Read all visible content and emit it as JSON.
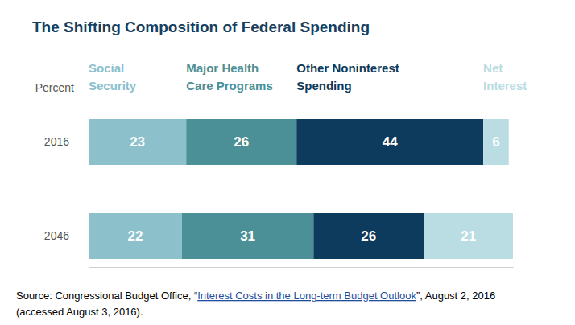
{
  "chart_data": {
    "type": "bar",
    "title": "The Shifting Composition of Federal Spending",
    "annotations": [
      "Percent"
    ],
    "categories": [
      "2016",
      "2046"
    ],
    "series": [
      {
        "name": "Social Security",
        "color": "#8cc0cb",
        "values": [
          23,
          22
        ]
      },
      {
        "name": "Major Health Care Programs",
        "color": "#4b9096",
        "values": [
          26,
          31
        ]
      },
      {
        "name": "Other Noninterest Spending",
        "color": "#0d3b5e",
        "values": [
          44,
          26
        ]
      },
      {
        "name": "Net Interest",
        "color": "#b9dde2",
        "values": [
          6,
          21
        ]
      }
    ],
    "xlim": [
      0,
      100
    ],
    "orientation": "horizontal",
    "stacked": true,
    "data_labels": true,
    "tick_labels": "y",
    "grid": false,
    "source": {
      "text": "Source: Congressional Budget Office, “",
      "link": "Interest Costs in the Long-term Budget Outlook",
      "text_after": "”, August 2, 2016",
      "line2": "(accessed August 3, 2016)."
    }
  }
}
